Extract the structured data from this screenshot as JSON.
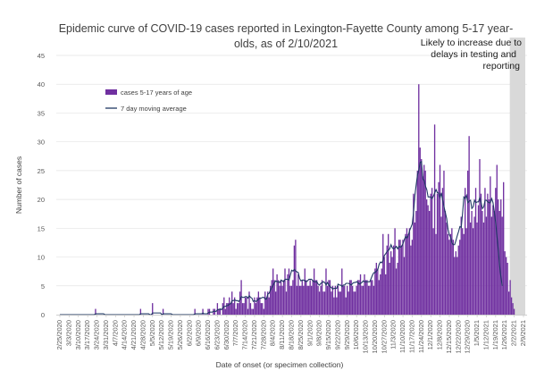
{
  "chart_data": {
    "type": "bar",
    "title_lines": [
      "Epidemic curve of COVID-19 cases reported in Lexington-Fayette County among 5-17 year-",
      "olds, as of 2/10/2021"
    ],
    "xlabel": "Date of onset (or specimen collection)",
    "ylabel": "Number of cases",
    "ylim": [
      0,
      45
    ],
    "yticks": [
      0,
      5,
      10,
      15,
      20,
      25,
      30,
      35,
      40,
      45
    ],
    "grid": "horizontal",
    "legend_position": "top-left",
    "x_start_date": "2020-02-25",
    "x_end_date": "2021-02-09",
    "x_tick_labels": [
      "2/25/2020",
      "3/3/2020",
      "3/10/2020",
      "3/17/2020",
      "3/24/2020",
      "3/31/2020",
      "4/7/2020",
      "4/14/2020",
      "4/21/2020",
      "4/28/2020",
      "5/5/2020",
      "5/12/2020",
      "5/19/2020",
      "5/26/2020",
      "6/2/2020",
      "6/9/2020",
      "6/16/2020",
      "6/23/2020",
      "6/30/2020",
      "7/7/2020",
      "7/14/2020",
      "7/21/2020",
      "7/28/2020",
      "8/4/2020",
      "8/11/2020",
      "8/18/2020",
      "8/25/2020",
      "9/1/2020",
      "9/8/2020",
      "9/15/2020",
      "9/22/2020",
      "9/29/2020",
      "10/6/2020",
      "10/13/2020",
      "10/20/2020",
      "10/27/2020",
      "11/3/2020",
      "11/10/2020",
      "11/17/2020",
      "11/24/2020",
      "12/1/2020",
      "12/8/2020",
      "12/15/2020",
      "12/22/2020",
      "12/29/2020",
      "1/5/2021",
      "1/12/2021",
      "1/19/2021",
      "1/26/2021",
      "2/2/2021",
      "2/9/2021"
    ],
    "series": [
      {
        "name": "cases 5-17 years of age",
        "kind": "bar",
        "color": "#7030a0",
        "values": [
          0,
          0,
          0,
          0,
          0,
          0,
          0,
          0,
          0,
          0,
          0,
          0,
          0,
          0,
          0,
          0,
          0,
          0,
          0,
          0,
          0,
          0,
          0,
          0,
          0,
          0,
          0,
          1,
          0,
          0,
          0,
          0,
          0,
          0,
          0,
          0,
          0,
          0,
          0,
          0,
          0,
          0,
          0,
          0,
          0,
          0,
          0,
          0,
          0,
          0,
          0,
          0,
          0,
          0,
          0,
          0,
          0,
          0,
          0,
          0,
          0,
          1,
          0,
          0,
          0,
          0,
          0,
          0,
          0,
          0,
          2,
          0,
          0,
          0,
          0,
          0,
          0,
          0,
          1,
          0,
          0,
          0,
          0,
          0,
          0,
          0,
          0,
          0,
          0,
          0,
          0,
          0,
          0,
          0,
          0,
          0,
          0,
          0,
          0,
          0,
          0,
          0,
          1,
          0,
          0,
          0,
          0,
          0,
          1,
          0,
          0,
          0,
          1,
          1,
          0,
          0,
          1,
          1,
          0,
          2,
          1,
          1,
          0,
          2,
          3,
          1,
          2,
          2,
          3,
          2,
          4,
          2,
          3,
          1,
          2,
          2,
          4,
          6,
          2,
          2,
          3,
          3,
          1,
          4,
          2,
          1,
          1,
          3,
          2,
          3,
          4,
          3,
          2,
          2,
          1,
          4,
          3,
          4,
          3,
          5,
          6,
          8,
          6,
          4,
          7,
          6,
          5,
          6,
          5,
          6,
          8,
          4,
          7,
          8,
          5,
          5,
          6,
          12,
          13,
          5,
          7,
          5,
          5,
          6,
          5,
          8,
          6,
          5,
          5,
          6,
          5,
          6,
          8,
          6,
          6,
          5,
          4,
          5,
          6,
          4,
          4,
          8,
          5,
          6,
          6,
          4,
          5,
          3,
          5,
          3,
          5,
          4,
          4,
          8,
          5,
          5,
          3,
          5,
          4,
          6,
          6,
          5,
          4,
          4,
          5,
          6,
          6,
          7,
          5,
          5,
          7,
          6,
          6,
          5,
          5,
          6,
          6,
          5,
          8,
          9,
          8,
          6,
          7,
          8,
          14,
          10,
          7,
          12,
          14,
          9,
          11,
          10,
          12,
          15,
          8,
          9,
          13,
          13,
          12,
          13,
          10,
          14,
          15,
          14,
          15,
          12,
          13,
          21,
          16,
          18,
          25,
          40,
          29,
          27,
          24,
          26,
          25,
          20,
          19,
          18,
          21,
          22,
          15,
          33,
          14,
          21,
          23,
          26,
          17,
          22,
          25,
          18,
          16,
          14,
          13,
          14,
          15,
          13,
          10,
          11,
          10,
          12,
          13,
          17,
          15,
          14,
          22,
          15,
          25,
          31,
          16,
          18,
          15,
          17,
          22,
          16,
          19,
          27,
          21,
          18,
          16,
          22,
          17,
          21,
          20,
          24,
          17,
          19,
          18,
          22,
          26,
          20,
          18,
          20,
          17,
          23,
          11,
          10,
          9,
          4,
          6,
          3,
          2,
          1
        ]
      },
      {
        "name": "7 day moving average",
        "kind": "line",
        "color": "#1f3864",
        "values": [
          0,
          0,
          0,
          0,
          0,
          0,
          0,
          0,
          0,
          0,
          0,
          0,
          0,
          0,
          0,
          0,
          0,
          0,
          0,
          0,
          0,
          0,
          0,
          0,
          0,
          0,
          0,
          0.14,
          0.14,
          0.14,
          0.14,
          0.14,
          0.14,
          0.14,
          0,
          0,
          0,
          0,
          0,
          0,
          0,
          0,
          0,
          0,
          0,
          0,
          0,
          0,
          0,
          0,
          0,
          0,
          0,
          0,
          0,
          0,
          0,
          0,
          0,
          0,
          0,
          0.14,
          0.14,
          0.14,
          0.14,
          0.14,
          0.14,
          0.14,
          0,
          0,
          0.29,
          0.29,
          0.29,
          0.29,
          0.29,
          0.29,
          0.29,
          0,
          0.14,
          0.14,
          0.14,
          0.14,
          0.14,
          0.14,
          0.14,
          0,
          0,
          0,
          0,
          0,
          0,
          0,
          0,
          0,
          0,
          0,
          0,
          0,
          0,
          0,
          0,
          0,
          0.14,
          0.14,
          0.14,
          0.14,
          0.14,
          0.14,
          0.29,
          0.14,
          0.14,
          0.14,
          0.29,
          0.43,
          0.43,
          0.43,
          0.57,
          0.57,
          0.57,
          0.86,
          0.86,
          1,
          0.86,
          1.14,
          1.43,
          1.43,
          1.57,
          1.57,
          1.86,
          1.86,
          2.43,
          2.43,
          2.57,
          2.43,
          2.43,
          2.29,
          2.57,
          3.14,
          3,
          3,
          3.14,
          3.14,
          2.86,
          3.29,
          3,
          2.86,
          2.29,
          2.43,
          2.29,
          2.43,
          2.71,
          2.86,
          2.86,
          3,
          3,
          2.71,
          2.71,
          3.57,
          3.71,
          4.29,
          4.71,
          5.14,
          5.57,
          5.86,
          5.71,
          5.71,
          5.57,
          6,
          5.86,
          5.71,
          6.14,
          6.14,
          6.14,
          6,
          6.86,
          7.71,
          7.57,
          7.86,
          7.57,
          7.43,
          7.29,
          6.29,
          5.86,
          6,
          6,
          5.86,
          5.71,
          5.86,
          6.14,
          6.14,
          6.14,
          5.86,
          5.71,
          5.71,
          5.71,
          5.29,
          5.14,
          5.43,
          5.57,
          5.71,
          5.57,
          5.14,
          5.57,
          5.14,
          4.86,
          4.71,
          4.43,
          4.57,
          4.57,
          4.57,
          5.29,
          5.14,
          5.14,
          4.86,
          5.14,
          5.14,
          5.43,
          5.43,
          5.43,
          5.29,
          5.14,
          5.43,
          5.57,
          5.57,
          5.71,
          5.57,
          5.29,
          5.43,
          5.57,
          5.86,
          5.71,
          5.71,
          5.71,
          5.71,
          5.71,
          6.29,
          6.86,
          7.29,
          7.29,
          7.57,
          7.86,
          8.71,
          9.14,
          9,
          9.43,
          10.29,
          10.57,
          11,
          11.14,
          11.43,
          12.14,
          11.57,
          11.43,
          11.57,
          11.86,
          11.43,
          11.86,
          11.71,
          11.86,
          12.29,
          13,
          13.57,
          13.29,
          13.71,
          14.57,
          15.14,
          15.71,
          17.71,
          20.71,
          22.57,
          24.29,
          25.14,
          26.43,
          26.57,
          23.57,
          23.29,
          22.29,
          21.71,
          20.43,
          20.43,
          20.43,
          20.14,
          20.57,
          21.14,
          21.71,
          21.14,
          21.14,
          20.29,
          21.14,
          19.86,
          18.71,
          17.71,
          16.71,
          14.86,
          13.86,
          13.43,
          12.43,
          12.14,
          12.14,
          12.86,
          13.71,
          14.43,
          15.29,
          15.14,
          17.57,
          20.43,
          20.14,
          20.71,
          19.43,
          19.71,
          19.86,
          18.43,
          18.71,
          19.86,
          19.43,
          19.57,
          19.57,
          20.29,
          19.43,
          18.43,
          18.71,
          19.86,
          19.86,
          19.57,
          19.43,
          19.43,
          20.14,
          19.43,
          17.86,
          16,
          13.57,
          11.14,
          8.43,
          6.43,
          5
        ]
      }
    ],
    "shaded_region": {
      "start_date": "2021-01-31",
      "end_date": "2021-02-09",
      "color": "#d9d9d9",
      "label_lines": [
        "Likely to increase due to",
        "delays in testing and",
        "reporting"
      ]
    }
  }
}
